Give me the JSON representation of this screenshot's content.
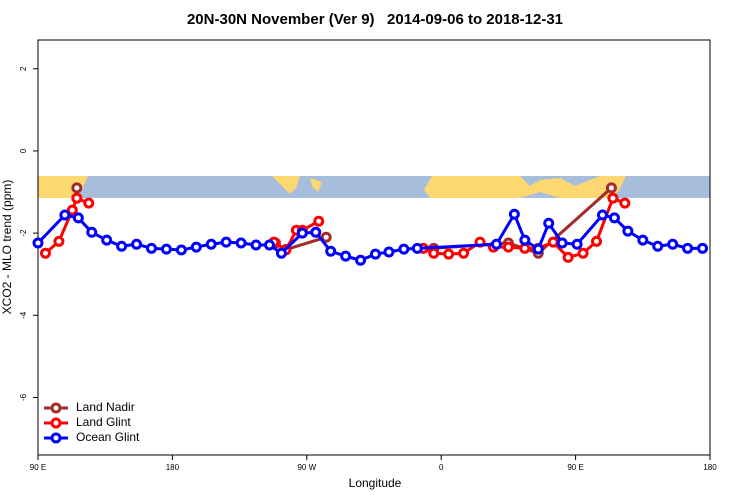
{
  "chart_data": {
    "type": "line",
    "title": "20N-30N November (Ver 9)   2014-09-06 to 2018-12-31",
    "x_label": "Longitude",
    "y_label": "XCO2 - MLO trend (ppm)",
    "xlim": [
      90,
      540
    ],
    "ylim": [
      -7.4,
      2.7
    ],
    "xticks": [
      {
        "value": 90,
        "label": "90 E"
      },
      {
        "value": 180,
        "label": "180"
      },
      {
        "value": 270,
        "label": "90 W"
      },
      {
        "value": 360,
        "label": "0"
      },
      {
        "value": 450,
        "label": "90 E"
      },
      {
        "value": 540,
        "label": "180"
      }
    ],
    "yticks": [
      -6,
      -4,
      -2,
      0,
      2
    ],
    "legend": "bottom-left",
    "series": [
      {
        "name": "Land Nadir",
        "color": "#a52a2a",
        "x": [
          116,
          180,
          249,
          256,
          283,
          320,
          355,
          405,
          425,
          474
        ],
        "values": [
          -0.9,
          null,
          -2.24,
          -2.4,
          -2.1,
          null,
          -2.37,
          -2.24,
          -2.49,
          -0.9
        ]
      },
      {
        "name": "Land Glint",
        "color": "#ff0000",
        "x": [
          95,
          104,
          113,
          116,
          124,
          180,
          248,
          256,
          263,
          267,
          278,
          320,
          348,
          355,
          365,
          375,
          386,
          395,
          405,
          416,
          425,
          435,
          445,
          455,
          464,
          475,
          483
        ],
        "values": [
          -2.49,
          -2.2,
          -1.44,
          -1.15,
          -1.27,
          null,
          -2.22,
          -2.41,
          -1.93,
          -1.93,
          -1.71,
          null,
          -2.37,
          -2.49,
          -2.51,
          -2.49,
          -2.22,
          -2.34,
          -2.34,
          -2.37,
          -2.37,
          -2.22,
          -2.59,
          -2.49,
          -2.2,
          -1.15,
          -1.27
        ]
      },
      {
        "name": "Ocean Glint",
        "color": "#0000ff",
        "x": [
          90,
          108,
          117,
          126,
          136,
          146,
          156,
          166,
          176,
          186,
          196,
          206,
          216,
          226,
          236,
          245,
          253,
          267,
          276,
          286,
          296,
          306,
          316,
          325,
          335,
          344,
          397,
          409,
          416,
          425,
          432,
          441,
          451,
          468,
          476,
          485,
          495,
          505,
          515,
          525,
          535
        ],
        "values": [
          -2.24,
          -1.56,
          -1.63,
          -1.98,
          -2.17,
          -2.32,
          -2.27,
          -2.37,
          -2.39,
          -2.41,
          -2.34,
          -2.27,
          -2.22,
          -2.24,
          -2.29,
          -2.29,
          -2.49,
          -2.0,
          -1.98,
          -2.44,
          -2.56,
          -2.66,
          -2.51,
          -2.46,
          -2.39,
          -2.37,
          -2.27,
          -1.54,
          -2.17,
          -2.39,
          -1.76,
          -2.24,
          -2.27,
          -1.56,
          -1.63,
          -1.95,
          -2.17,
          -2.32,
          -2.27,
          -2.37,
          -2.37
        ]
      }
    ]
  }
}
